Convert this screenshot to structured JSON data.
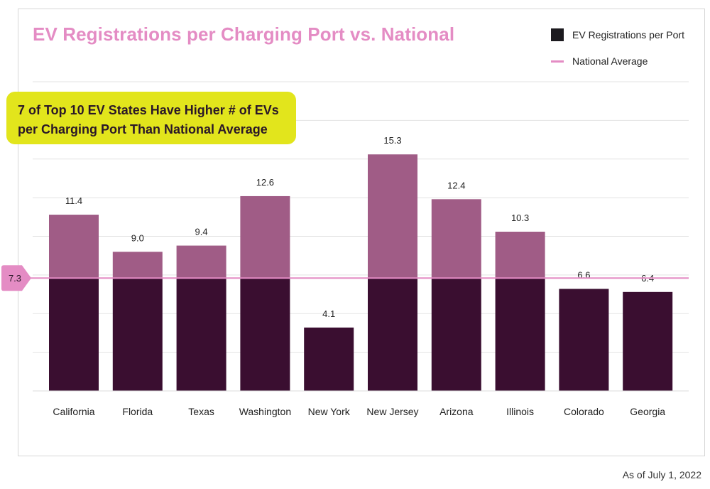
{
  "title": "EV Registrations per Charging Port vs. National",
  "legend": {
    "bar_label": "EV Registrations per Port",
    "line_label": "National Average"
  },
  "callout": {
    "line1": "7 of Top 10 EV States Have Higher # of EVs",
    "line2": "per Charging Port Than National Average"
  },
  "footnote": "As of July 1, 2022",
  "colors": {
    "title": "#e48cc4",
    "bar_dark": "#3a0e30",
    "bar_above_average": "#a05c86",
    "average_line": "#e48cc4",
    "callout_bg": "#e2e51c"
  },
  "chart_data": {
    "type": "bar",
    "categories": [
      "California",
      "Florida",
      "Texas",
      "Washington",
      "New York",
      "New Jersey",
      "Arizona",
      "Illinois",
      "Colorado",
      "Georgia"
    ],
    "series": [
      {
        "name": "EV Registrations per Port",
        "values": [
          11.4,
          9.0,
          9.4,
          12.6,
          4.1,
          15.3,
          12.4,
          10.3,
          6.6,
          6.4
        ]
      }
    ],
    "data_labels": [
      "11.4",
      "9.0",
      "9.4",
      "12.6",
      "4.1",
      "15.3",
      "12.4",
      "10.3",
      "6.6",
      "6.4"
    ],
    "reference_line": {
      "name": "National Average",
      "value": 7.3,
      "label": "7.3"
    },
    "ylim": [
      0,
      20
    ],
    "grid": true,
    "legend_position": "top-right",
    "xlabel": "",
    "ylabel": ""
  }
}
